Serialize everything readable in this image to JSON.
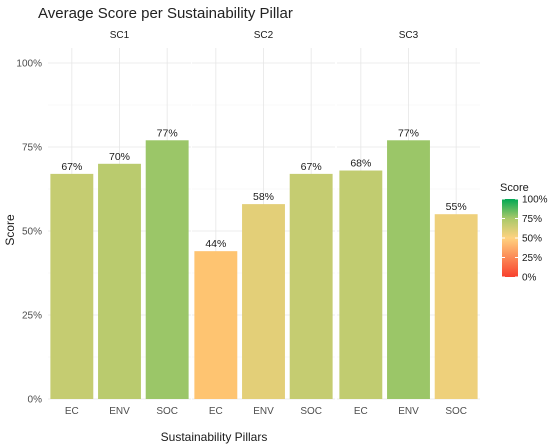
{
  "chart_data": {
    "type": "bar",
    "title": "Average Score per Sustainability Pillar",
    "xlabel": "Sustainability Pillars",
    "ylabel": "Score",
    "ylim": [
      0,
      100
    ],
    "y_ticks": [
      "0%",
      "25%",
      "50%",
      "75%",
      "100%"
    ],
    "categories": [
      "EC",
      "ENV",
      "SOC"
    ],
    "panels": [
      {
        "name": "SC1",
        "values": [
          67,
          70,
          77
        ],
        "labels": [
          "67%",
          "70%",
          "77%"
        ]
      },
      {
        "name": "SC2",
        "values": [
          44,
          58,
          67
        ],
        "labels": [
          "44%",
          "58%",
          "67%"
        ]
      },
      {
        "name": "SC3",
        "values": [
          68,
          77,
          55
        ],
        "labels": [
          "68%",
          "77%",
          "55%"
        ]
      }
    ],
    "legend": {
      "title": "Score",
      "ticks": [
        "100%",
        "75%",
        "50%",
        "25%",
        "0%"
      ],
      "position": "right",
      "colors": {
        "low": "#f8402d",
        "mid": "#ffd27f",
        "high": "#00a854"
      }
    },
    "grid": true
  }
}
